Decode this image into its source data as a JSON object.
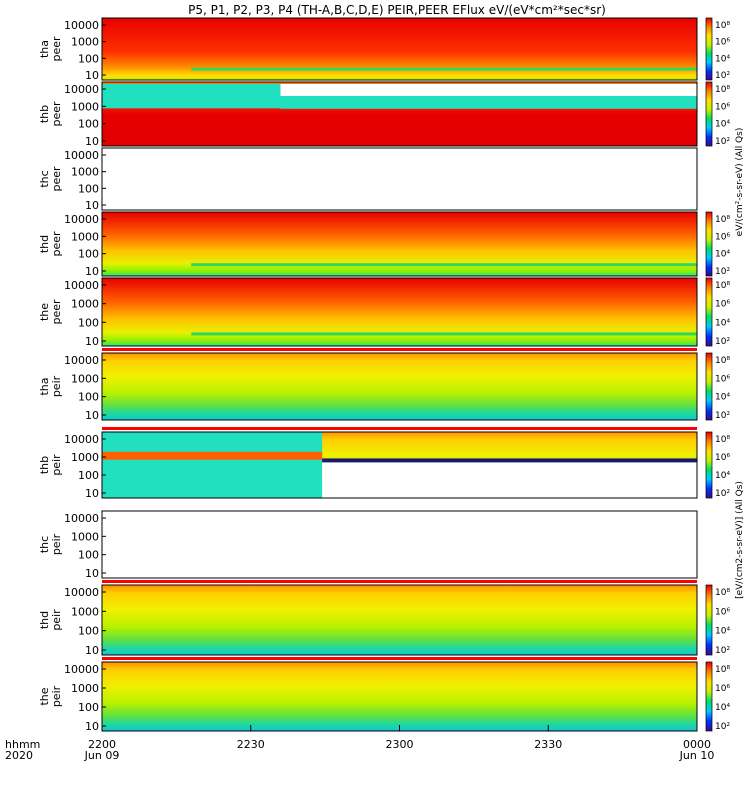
{
  "chart_data": {
    "type": "heatmap",
    "title": "P5, P1, P2, P3, P4 (TH-A,B,C,D,E) PEIR,PEER EFlux eV/(eV*cm²*sec*sr)",
    "x_axis": {
      "row1_label": "hhmm",
      "row2_label": "2020",
      "ticks": [
        {
          "hhmm": "2200",
          "date": "Jun 09"
        },
        {
          "hhmm": "2230",
          "date": ""
        },
        {
          "hhmm": "2300",
          "date": ""
        },
        {
          "hhmm": "2330",
          "date": ""
        },
        {
          "hhmm": "0000",
          "date": "Jun 10"
        }
      ]
    },
    "y_ticks": [
      "10000",
      "1000",
      "100",
      "10"
    ],
    "colorbar": {
      "ticks": [
        "10⁸",
        "10⁶",
        "10⁴",
        "10²"
      ],
      "colors": [
        "#3a0a8a",
        "#0030ff",
        "#00c8ff",
        "#00e060",
        "#c8f000",
        "#ffe000",
        "#ff8000",
        "#e80000"
      ]
    },
    "right_labels": {
      "peer": "eV/(cm²-s-sr-eV) (All Qs)",
      "peir": "[eV/(cm2-s-sr-eV)] (All Qs)"
    },
    "panels": [
      {
        "probe": "tha",
        "species": "peer"
      },
      {
        "probe": "thb",
        "species": "peer"
      },
      {
        "probe": "thc",
        "species": "peer"
      },
      {
        "probe": "thd",
        "species": "peer"
      },
      {
        "probe": "the",
        "species": "peer"
      },
      {
        "probe": "tha",
        "species": "peir"
      },
      {
        "probe": "thb",
        "species": "peir"
      },
      {
        "probe": "thc",
        "species": "peir"
      },
      {
        "probe": "thd",
        "species": "peir"
      },
      {
        "probe": "the",
        "species": "peir"
      }
    ]
  }
}
